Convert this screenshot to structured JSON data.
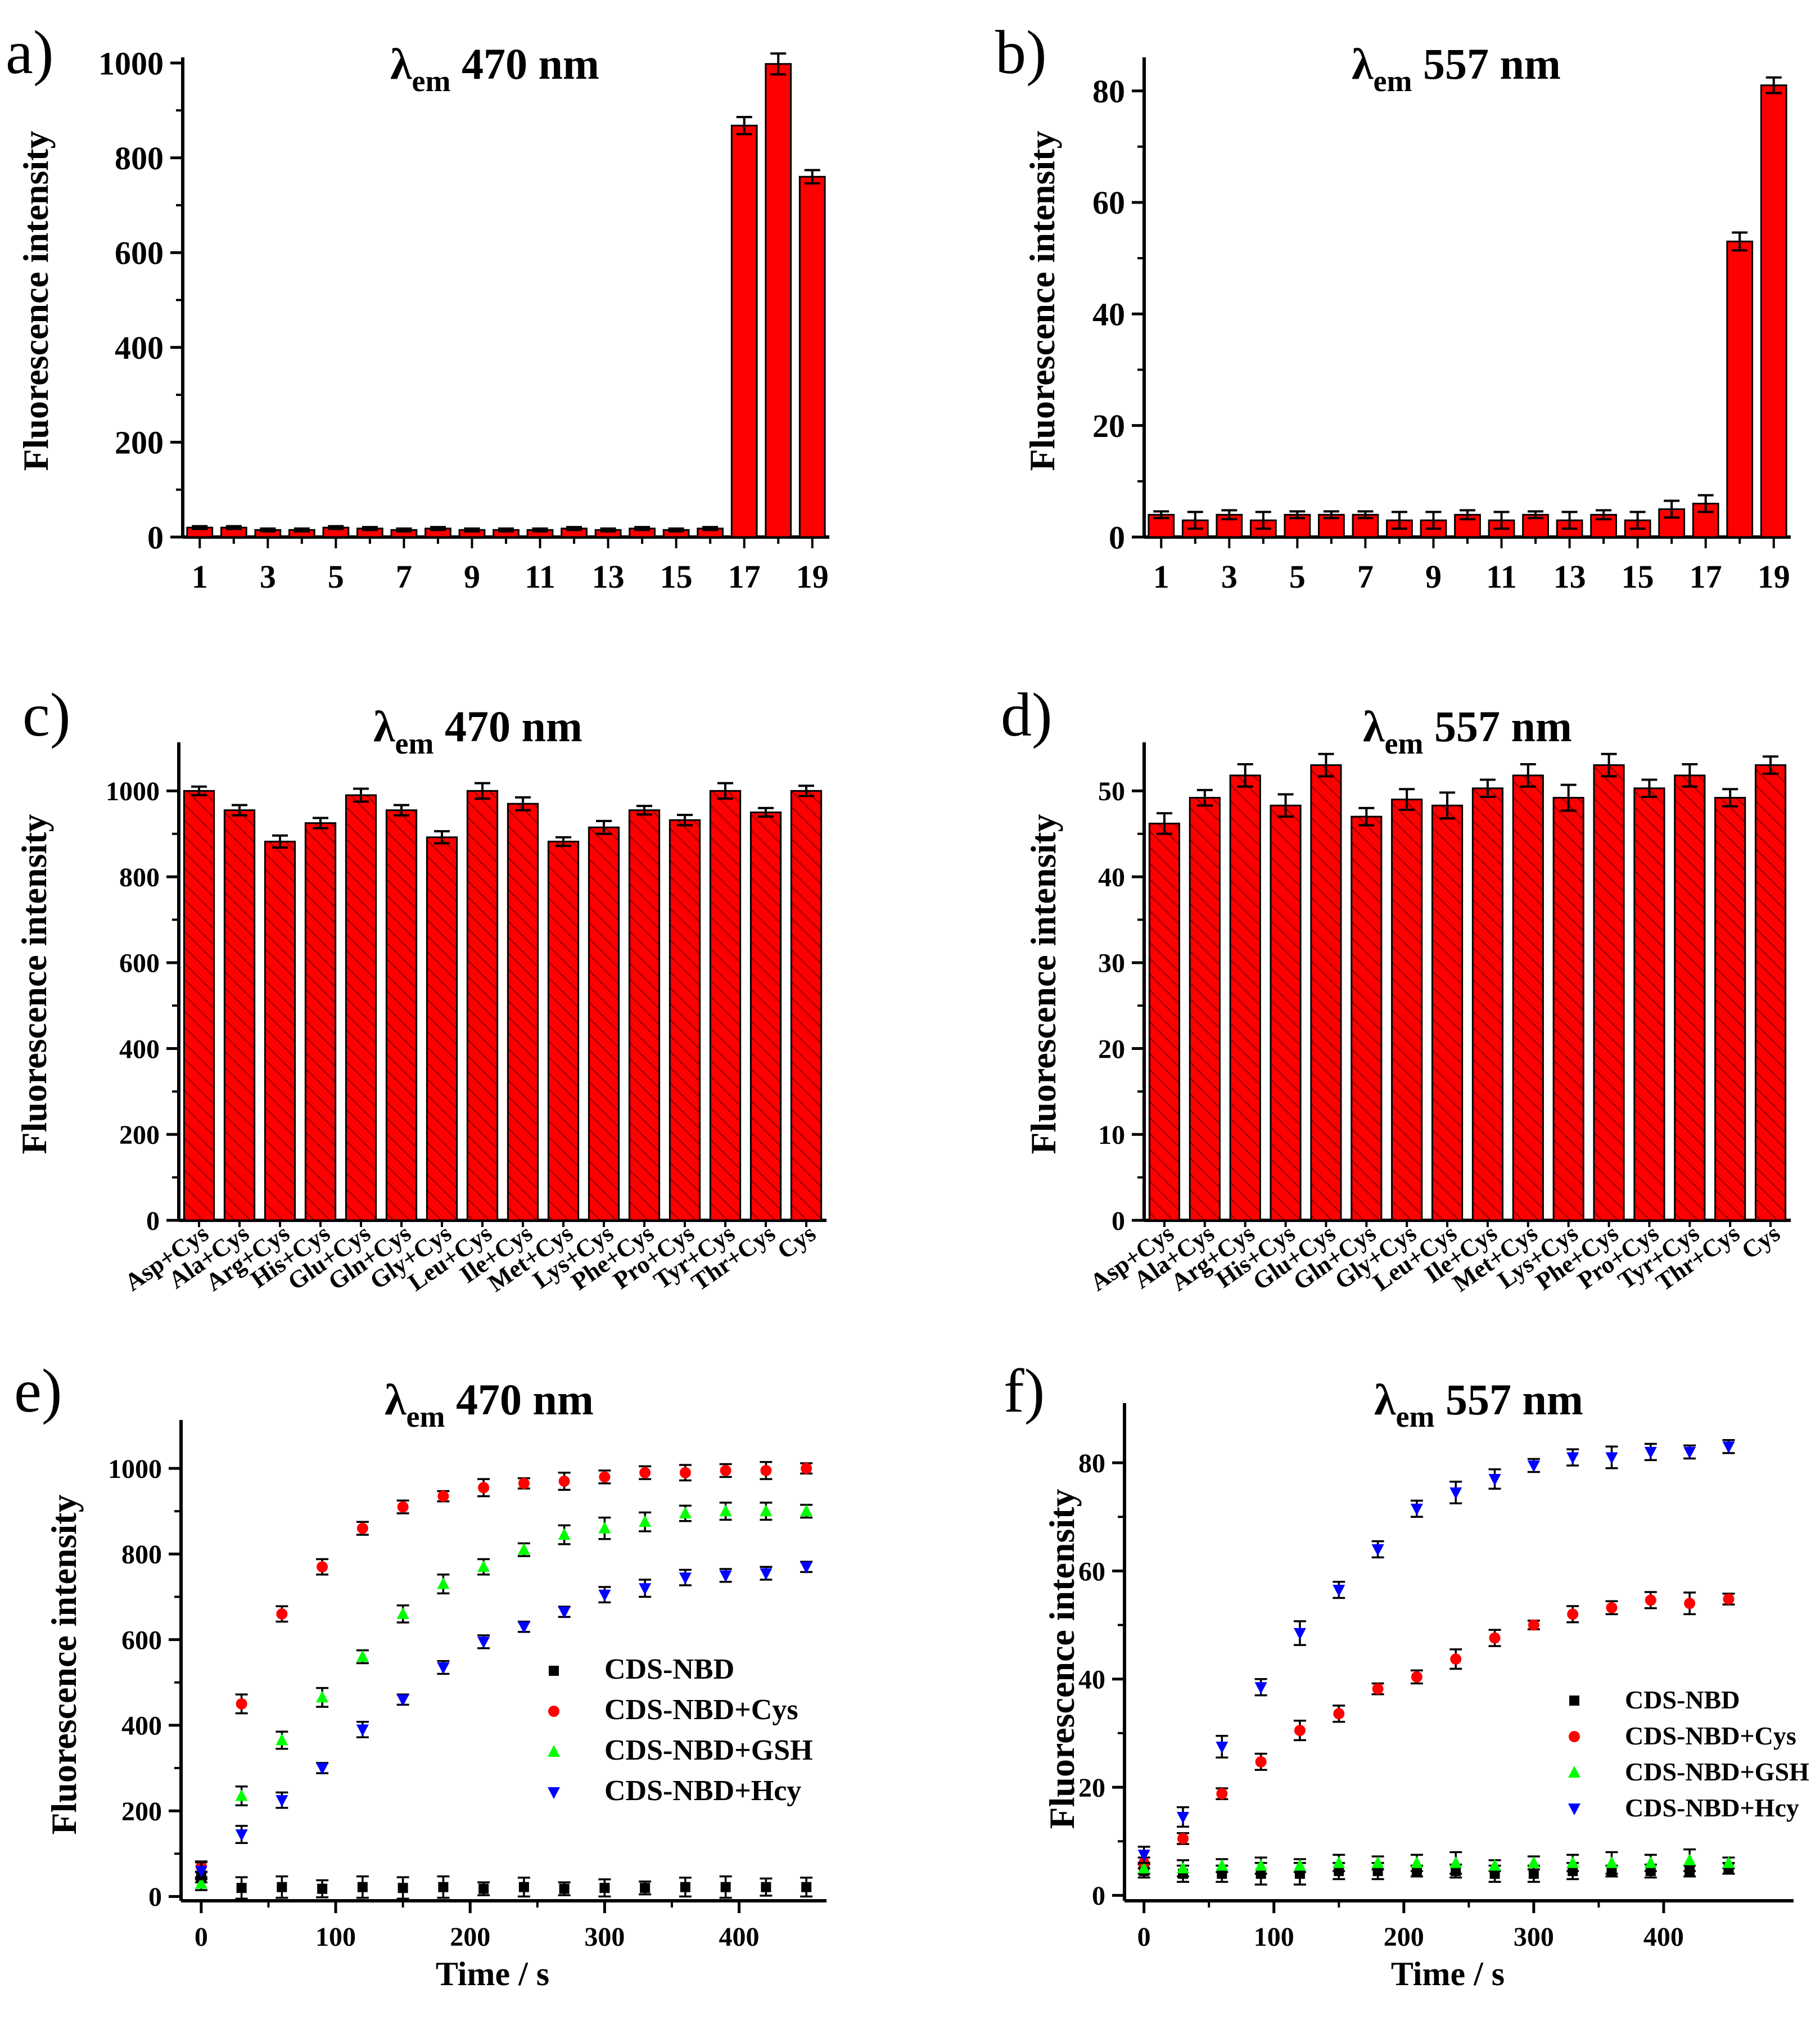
{
  "colors": {
    "bar": "#ff0000",
    "axis": "#000000",
    "black": "#000000",
    "red": "#ff0000",
    "green": "#00ff00",
    "blue": "#0000ff"
  },
  "chart_data": [
    {
      "panel": "a)",
      "type": "bar",
      "title_main": "λ",
      "title_sub": "em",
      "title_rest": " 470 nm",
      "ylabel": "Fluorescence intensity",
      "ylim": [
        0,
        1000
      ],
      "yticks": [
        0,
        200,
        400,
        600,
        800,
        1000
      ],
      "categories": [
        "1",
        "2",
        "3",
        "4",
        "5",
        "6",
        "7",
        "8",
        "9",
        "10",
        "11",
        "12",
        "13",
        "14",
        "15",
        "16",
        "17",
        "18",
        "19"
      ],
      "xticks": [
        "1",
        "3",
        "5",
        "7",
        "9",
        "11",
        "13",
        "15",
        "17",
        "19"
      ],
      "values": [
        20,
        20,
        15,
        15,
        20,
        18,
        15,
        18,
        15,
        15,
        15,
        18,
        15,
        18,
        15,
        18,
        868,
        998,
        760
      ],
      "errors": [
        3,
        3,
        3,
        3,
        3,
        3,
        3,
        3,
        3,
        3,
        3,
        3,
        3,
        3,
        3,
        3,
        18,
        22,
        14
      ],
      "hatched": false
    },
    {
      "panel": "b)",
      "type": "bar",
      "title_main": "λ",
      "title_sub": "em",
      "title_rest": " 557 nm",
      "ylabel": "Fluorescence intensity",
      "ylim": [
        0,
        85
      ],
      "yticks": [
        0,
        20,
        40,
        60,
        80
      ],
      "categories": [
        "1",
        "2",
        "3",
        "4",
        "5",
        "6",
        "7",
        "8",
        "9",
        "10",
        "11",
        "12",
        "13",
        "14",
        "15",
        "16",
        "17",
        "18",
        "19"
      ],
      "xticks": [
        "1",
        "3",
        "5",
        "7",
        "9",
        "11",
        "13",
        "15",
        "17",
        "19"
      ],
      "values": [
        4,
        3,
        4,
        3,
        4,
        4,
        4,
        3,
        3,
        4,
        3,
        4,
        3,
        4,
        3,
        5,
        6,
        53,
        81
      ],
      "errors": [
        0.6,
        1.5,
        0.8,
        1.5,
        0.6,
        0.6,
        0.6,
        1.5,
        1.5,
        0.8,
        1.5,
        0.6,
        1.5,
        0.8,
        1.5,
        1.5,
        1.5,
        1.6,
        1.4
      ],
      "hatched": false
    },
    {
      "panel": "c)",
      "type": "bar",
      "title_main": "λ",
      "title_sub": "em",
      "title_rest": " 470 nm",
      "ylabel": "Fluorescence intensity",
      "ylim": [
        0,
        1100
      ],
      "yticks": [
        0,
        200,
        400,
        600,
        800,
        1000
      ],
      "categories": [
        "Asp+Cys",
        "Ala+Cys",
        "Arg+Cys",
        "His+Cys",
        "Glu+Cys",
        "Gln+Cys",
        "Gly+Cys",
        "Leu+Cys",
        "Ile+Cys",
        "Met+Cys",
        "Lys+Cys",
        "Phe+Cys",
        "Pro+Cys",
        "Tyr+Cys",
        "Thr+Cys",
        "Cys"
      ],
      "values": [
        1000,
        955,
        882,
        925,
        990,
        955,
        892,
        1000,
        970,
        882,
        915,
        955,
        932,
        1000,
        950,
        1000
      ],
      "errors": [
        10,
        12,
        14,
        12,
        15,
        12,
        14,
        18,
        15,
        10,
        15,
        10,
        12,
        18,
        10,
        12
      ],
      "hatched": true
    },
    {
      "panel": "d)",
      "type": "bar",
      "title_main": "λ",
      "title_sub": "em",
      "title_rest": " 557 nm",
      "ylabel": "Fluorescence intensity",
      "ylim": [
        0,
        55
      ],
      "yticks": [
        0,
        10,
        20,
        30,
        40,
        50
      ],
      "categories": [
        "Asp+Cys",
        "Ala+Cys",
        "Arg+Cys",
        "His+Cys",
        "Glu+Cys",
        "Gln+Cys",
        "Gly+Cys",
        "Leu+Cys",
        "Ile+Cys",
        "Met+Cys",
        "Lys+Cys",
        "Phe+Cys",
        "Pro+Cys",
        "Tyr+Cys",
        "Thr+Cys",
        "Cys"
      ],
      "values": [
        46.2,
        49.2,
        51.8,
        48.3,
        53,
        47,
        49,
        48.3,
        50.3,
        51.8,
        49.2,
        53,
        50.3,
        51.8,
        49.2,
        53
      ],
      "errors": [
        1.2,
        0.9,
        1.3,
        1.3,
        1.3,
        1.0,
        1.2,
        1.5,
        1.0,
        1.3,
        1.5,
        1.3,
        1.0,
        1.3,
        1.0,
        1.0
      ],
      "hatched": true
    },
    {
      "panel": "e)",
      "type": "scatter",
      "title_main": "λ",
      "title_sub": "em",
      "title_rest": " 470 nm",
      "xlabel": "Time / s",
      "ylabel": "Fluorescence intensity",
      "xlim": [
        -15,
        465
      ],
      "ylim": [
        -10,
        1100
      ],
      "xticks": [
        0,
        100,
        200,
        300,
        400
      ],
      "yticks": [
        0,
        200,
        400,
        600,
        800,
        1000
      ],
      "x": [
        0,
        30,
        60,
        90,
        120,
        150,
        180,
        210,
        240,
        270,
        300,
        330,
        360,
        390,
        420,
        450
      ],
      "series": [
        {
          "name": "CDS-NBD",
          "marker": "square",
          "color": "#000000",
          "values": [
            45,
            20,
            22,
            18,
            22,
            20,
            22,
            18,
            22,
            18,
            20,
            20,
            22,
            22,
            22,
            22
          ],
          "errors": [
            12,
            25,
            25,
            20,
            25,
            25,
            25,
            15,
            22,
            15,
            20,
            15,
            22,
            25,
            20,
            22
          ]
        },
        {
          "name": "CDS-NBD+Cys",
          "marker": "circle",
          "color": "#ff0000",
          "values": [
            70,
            450,
            660,
            770,
            860,
            910,
            935,
            955,
            965,
            970,
            980,
            990,
            990,
            995,
            995,
            1000
          ],
          "errors": [
            12,
            22,
            18,
            18,
            15,
            15,
            12,
            20,
            12,
            20,
            15,
            15,
            18,
            15,
            20,
            12
          ]
        },
        {
          "name": "CDS-NBD+GSH",
          "marker": "triangle-up",
          "color": "#00ff00",
          "values": [
            30,
            235,
            365,
            465,
            560,
            660,
            730,
            770,
            810,
            845,
            860,
            875,
            895,
            900,
            900,
            900
          ],
          "errors": [
            15,
            22,
            20,
            22,
            15,
            20,
            22,
            18,
            15,
            22,
            25,
            22,
            18,
            20,
            20,
            15
          ]
        },
        {
          "name": "CDS-NBD+Hcy",
          "marker": "triangle-down",
          "color": "#0000ff",
          "values": [
            60,
            145,
            225,
            300,
            390,
            460,
            535,
            595,
            630,
            665,
            705,
            720,
            745,
            750,
            755,
            770
          ],
          "errors": [
            20,
            20,
            18,
            12,
            18,
            12,
            15,
            15,
            12,
            12,
            18,
            20,
            18,
            15,
            15,
            12
          ]
        }
      ],
      "legend_position": "center-right"
    },
    {
      "panel": "f)",
      "type": "scatter",
      "title_main": "λ",
      "title_sub": "em",
      "title_rest": " 557 nm",
      "xlabel": "Time / s",
      "ylabel": "Fluorescence intensity",
      "xlim": [
        -15,
        500
      ],
      "ylim": [
        -1,
        90
      ],
      "xticks": [
        0,
        100,
        200,
        300,
        400
      ],
      "yticks": [
        0,
        20,
        40,
        60,
        80
      ],
      "x": [
        0,
        30,
        60,
        90,
        120,
        150,
        180,
        210,
        240,
        270,
        300,
        330,
        360,
        390,
        420,
        450
      ],
      "series": [
        {
          "name": "CDS-NBD",
          "marker": "square",
          "color": "#000000",
          "values": [
            4.5,
            4,
            4,
            4,
            4,
            4.5,
            4.5,
            4.5,
            4.5,
            4,
            4,
            4.5,
            4.5,
            4.5,
            4.5,
            5
          ],
          "errors": [
            1.2,
            1.5,
            1.5,
            2,
            2,
            1.5,
            1.5,
            1,
            1.2,
            1.5,
            1.5,
            1.5,
            1,
            1.2,
            1,
            1
          ]
        },
        {
          "name": "CDS-NBD+Cys",
          "marker": "circle",
          "color": "#ff0000",
          "values": [
            6,
            10.5,
            18.8,
            24.7,
            30.5,
            33.6,
            38.2,
            40.4,
            43.7,
            47.6,
            50,
            52,
            53.2,
            54.6,
            54,
            54.8
          ],
          "errors": [
            1,
            1,
            1,
            1.5,
            1.8,
            1.5,
            1,
            1.2,
            1.8,
            1.5,
            0.8,
            1.5,
            1.2,
            1.5,
            2,
            1
          ]
        },
        {
          "name": "CDS-NBD+GSH",
          "marker": "triangle-up",
          "color": "#00ff00",
          "values": [
            5,
            5,
            5.5,
            5.5,
            5.5,
            6,
            6,
            6,
            6,
            5.5,
            6,
            6,
            6,
            6,
            6.5,
            6
          ],
          "errors": [
            1,
            1.5,
            1.2,
            1.5,
            1.2,
            1.5,
            1.2,
            1.5,
            2,
            1,
            1.2,
            1.5,
            2,
            1.5,
            2,
            1
          ]
        },
        {
          "name": "CDS-NBD+Hcy",
          "marker": "triangle-down",
          "color": "#0000ff",
          "values": [
            7.5,
            14.5,
            27.5,
            38.5,
            48.5,
            56.5,
            64,
            71.5,
            74.5,
            77,
            79.5,
            81,
            81,
            82,
            82,
            83
          ],
          "errors": [
            1.5,
            1.8,
            2,
            1.5,
            2.2,
            1.5,
            1.5,
            1.5,
            2,
            1.8,
            1.2,
            1.5,
            2,
            1.5,
            1.2,
            1.2
          ]
        }
      ],
      "legend_position": "center-right"
    }
  ]
}
